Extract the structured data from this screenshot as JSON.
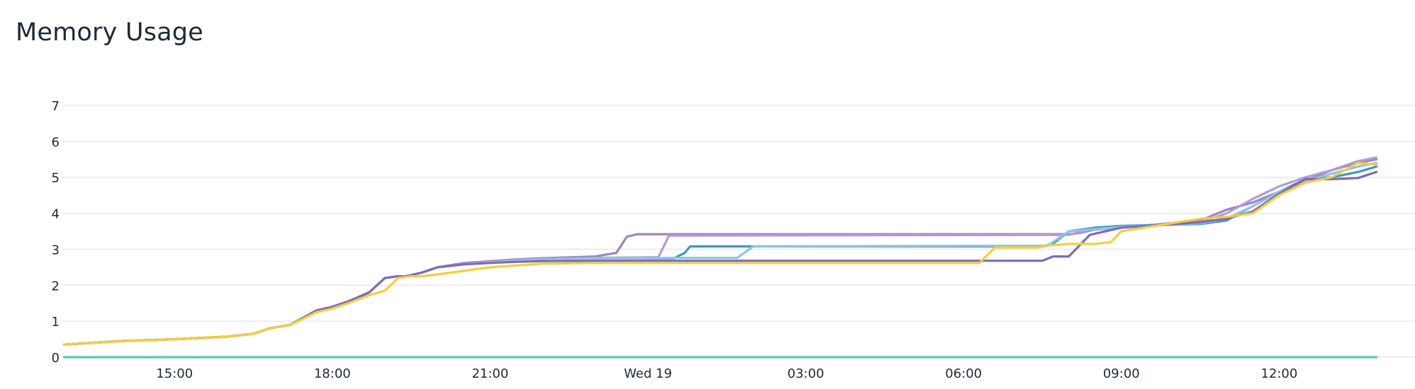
{
  "panel": {
    "title": "Memory Usage"
  },
  "chart_data": {
    "type": "line",
    "title": "Memory Usage",
    "xlabel": "",
    "ylabel": "",
    "ylim": [
      0,
      7
    ],
    "y_ticks": [
      0,
      1,
      2,
      3,
      4,
      5,
      6,
      7
    ],
    "xlim_hours": [
      -9.1,
      8.05
    ],
    "x_ticks": [
      {
        "hour": -9,
        "label": "15:00"
      },
      {
        "hour": -6,
        "label": "18:00"
      },
      {
        "hour": -3,
        "label": "21:00"
      },
      {
        "hour": 0,
        "label": "Wed 19"
      },
      {
        "hour": 3,
        "label": "03:00"
      },
      {
        "hour": 6,
        "label": "06:00"
      },
      {
        "hour": 9,
        "label": "09:00"
      },
      {
        "hour": 12,
        "label": "12:00"
      }
    ],
    "grid": true,
    "legend": "none",
    "series": [
      {
        "color": "#9d84c4",
        "x": [
          -11.1,
          -10.0,
          -9.0,
          -8.0,
          -7.5,
          -7.2,
          -6.8,
          -6.3,
          -6.0,
          -5.7,
          -5.3,
          -5.0,
          -4.75,
          -4.6,
          -4.3,
          -4.0,
          -3.5,
          -3.0,
          -2.5,
          -2.0,
          -1.0,
          -0.6,
          -0.4,
          -0.2,
          8.0,
          8.2,
          8.5,
          9.0,
          10.5,
          11.0,
          11.5,
          12.0,
          12.5,
          13.0,
          13.5,
          13.85
        ],
        "y": [
          0.35,
          0.45,
          0.5,
          0.57,
          0.65,
          0.8,
          0.9,
          1.3,
          1.4,
          1.55,
          1.8,
          2.2,
          2.25,
          2.25,
          2.35,
          2.5,
          2.62,
          2.67,
          2.72,
          2.75,
          2.8,
          2.9,
          3.35,
          3.42,
          3.42,
          3.45,
          3.55,
          3.6,
          3.8,
          4.1,
          4.3,
          4.6,
          4.9,
          5.2,
          5.4,
          5.5
        ]
      },
      {
        "color": "#b39ad8",
        "x": [
          -11.1,
          -10.0,
          -9.0,
          -8.0,
          -7.5,
          -7.2,
          -6.8,
          -6.3,
          -6.0,
          -5.7,
          -5.3,
          -5.0,
          -4.75,
          -4.6,
          -4.3,
          -4.0,
          -3.5,
          -3.0,
          -2.5,
          -2.0,
          -1.0,
          0.2,
          0.4,
          8.0,
          8.4,
          9.0,
          10.5,
          11.0,
          11.5,
          12.0,
          12.5,
          13.0,
          13.5,
          13.85
        ],
        "y": [
          0.35,
          0.45,
          0.5,
          0.57,
          0.65,
          0.8,
          0.9,
          1.3,
          1.4,
          1.55,
          1.8,
          2.2,
          2.25,
          2.25,
          2.35,
          2.5,
          2.6,
          2.65,
          2.7,
          2.73,
          2.76,
          2.78,
          3.38,
          3.4,
          3.55,
          3.6,
          3.75,
          4.0,
          4.4,
          4.75,
          5.0,
          5.2,
          5.45,
          5.55
        ]
      },
      {
        "color": "#3498cb",
        "x": [
          -11.1,
          -10.0,
          -9.0,
          -8.0,
          -7.5,
          -7.2,
          -6.8,
          -6.3,
          -6.0,
          -5.7,
          -5.3,
          -5.0,
          -4.75,
          -4.6,
          -4.3,
          -4.0,
          -3.5,
          -3.0,
          -2.5,
          -2.0,
          -1.0,
          0.5,
          0.7,
          0.8,
          7.5,
          7.7,
          8.0,
          8.5,
          9.0,
          10.5,
          11.0,
          11.5,
          12.0,
          12.5,
          13.0,
          13.5,
          13.85
        ],
        "y": [
          0.35,
          0.45,
          0.5,
          0.57,
          0.65,
          0.8,
          0.9,
          1.3,
          1.4,
          1.55,
          1.8,
          2.2,
          2.25,
          2.25,
          2.35,
          2.5,
          2.58,
          2.63,
          2.68,
          2.72,
          2.75,
          2.75,
          2.9,
          3.08,
          3.08,
          3.15,
          3.5,
          3.6,
          3.65,
          3.7,
          3.8,
          4.2,
          4.6,
          4.95,
          5.0,
          5.15,
          5.3
        ]
      },
      {
        "color": "#8ec4e8",
        "x": [
          -11.1,
          -10.0,
          -9.0,
          -8.0,
          -7.5,
          -7.2,
          -6.8,
          -6.3,
          -6.0,
          -5.7,
          -5.3,
          -5.0,
          -4.75,
          -4.6,
          -4.3,
          -4.0,
          -3.5,
          -3.0,
          -2.5,
          -2.0,
          -1.0,
          0.5,
          1.7,
          2.0,
          7.6,
          8.0,
          9.0,
          10.5,
          11.0,
          11.5,
          12.0,
          12.5,
          13.0,
          13.5,
          13.85
        ],
        "y": [
          0.35,
          0.45,
          0.5,
          0.57,
          0.65,
          0.8,
          0.9,
          1.3,
          1.4,
          1.55,
          1.8,
          2.2,
          2.25,
          2.25,
          2.35,
          2.5,
          2.58,
          2.63,
          2.68,
          2.72,
          2.75,
          2.76,
          2.76,
          3.08,
          3.1,
          3.5,
          3.62,
          3.72,
          3.85,
          4.2,
          4.6,
          4.9,
          5.1,
          5.3,
          5.4
        ]
      },
      {
        "color": "#7f6bb4",
        "x": [
          -11.1,
          -10.0,
          -9.0,
          -8.0,
          -7.5,
          -7.2,
          -6.8,
          -6.3,
          -6.0,
          -5.7,
          -5.3,
          -5.0,
          -4.75,
          -4.6,
          -4.3,
          -4.0,
          -3.5,
          -3.0,
          -2.5,
          -2.0,
          -1.0,
          0.5,
          7.5,
          7.7,
          8.0,
          8.4,
          9.0,
          10.5,
          11.0,
          11.5,
          12.0,
          12.5,
          13.0,
          13.5,
          13.85
        ],
        "y": [
          0.35,
          0.45,
          0.5,
          0.57,
          0.65,
          0.8,
          0.9,
          1.3,
          1.4,
          1.55,
          1.8,
          2.2,
          2.25,
          2.25,
          2.35,
          2.5,
          2.58,
          2.62,
          2.65,
          2.67,
          2.68,
          2.68,
          2.68,
          2.8,
          2.8,
          3.4,
          3.6,
          3.75,
          3.85,
          4.05,
          4.55,
          4.95,
          4.95,
          4.98,
          5.15
        ]
      },
      {
        "color": "#f6cd3a",
        "x": [
          -11.1,
          -10.0,
          -9.0,
          -8.0,
          -7.5,
          -7.2,
          -6.8,
          -6.3,
          -6.0,
          -5.7,
          -5.3,
          -5.0,
          -4.75,
          -4.5,
          -4.3,
          -4.0,
          -3.5,
          -3.0,
          -2.5,
          -2.0,
          -1.0,
          0.5,
          6.3,
          6.6,
          7.4,
          7.6,
          8.0,
          8.5,
          8.8,
          9.0,
          10.5,
          11.0,
          11.5,
          12.0,
          12.5,
          13.0,
          13.5,
          13.85
        ],
        "y": [
          0.35,
          0.45,
          0.5,
          0.57,
          0.65,
          0.8,
          0.9,
          1.25,
          1.35,
          1.5,
          1.72,
          1.85,
          2.2,
          2.25,
          2.25,
          2.3,
          2.4,
          2.5,
          2.55,
          2.6,
          2.62,
          2.62,
          2.62,
          3.05,
          3.05,
          3.1,
          3.15,
          3.15,
          3.2,
          3.5,
          3.85,
          3.9,
          4.0,
          4.5,
          4.85,
          5.0,
          5.4,
          5.35
        ]
      },
      {
        "color": "#5cc4b8",
        "x": [
          -11.1,
          13.85
        ],
        "y": [
          0.0,
          0.0
        ]
      }
    ]
  }
}
